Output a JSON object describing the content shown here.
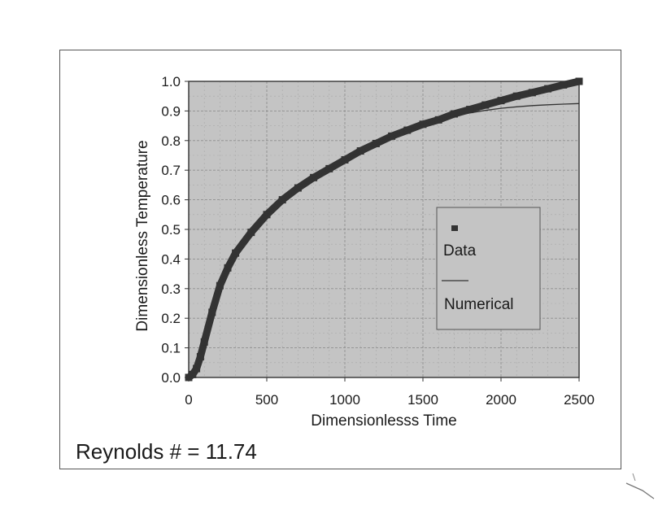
{
  "chart_data": {
    "type": "line",
    "xlabel": "Dimensionlesss Time",
    "ylabel": "Dimensionless Temperature",
    "xlim": [
      0,
      2500
    ],
    "ylim": [
      0,
      1.0
    ],
    "x_ticks": [
      "0",
      "500",
      "1000",
      "1500",
      "2000",
      "2500"
    ],
    "y_ticks": [
      "0.0",
      "0.1",
      "0.2",
      "0.3",
      "0.4",
      "0.5",
      "0.6",
      "0.7",
      "0.8",
      "0.9",
      "1.0"
    ],
    "grid": true,
    "legend": "right-middle",
    "series": [
      {
        "name": "Data",
        "style": "markers",
        "color": "#333333",
        "x": [
          0,
          25,
          50,
          75,
          100,
          150,
          200,
          250,
          300,
          400,
          500,
          600,
          700,
          800,
          900,
          1000,
          1100,
          1200,
          1300,
          1400,
          1500,
          1600,
          1700,
          1800,
          1900,
          2000,
          2100,
          2200,
          2300,
          2400,
          2500
        ],
        "y": [
          0.0,
          0.01,
          0.03,
          0.07,
          0.12,
          0.22,
          0.31,
          0.37,
          0.42,
          0.49,
          0.55,
          0.6,
          0.64,
          0.675,
          0.705,
          0.735,
          0.765,
          0.79,
          0.815,
          0.835,
          0.855,
          0.87,
          0.89,
          0.905,
          0.92,
          0.935,
          0.95,
          0.962,
          0.975,
          0.988,
          1.0
        ]
      },
      {
        "name": "Numerical",
        "style": "line",
        "color": "#333333",
        "x": [
          0,
          25,
          50,
          75,
          100,
          150,
          200,
          250,
          300,
          400,
          500,
          600,
          700,
          800,
          900,
          1000,
          1100,
          1200,
          1300,
          1400,
          1500,
          1600,
          1700,
          1800,
          1900,
          2000,
          2100,
          2200,
          2300,
          2400,
          2500
        ],
        "y": [
          0.0,
          0.01,
          0.03,
          0.07,
          0.12,
          0.22,
          0.31,
          0.37,
          0.42,
          0.49,
          0.55,
          0.6,
          0.64,
          0.675,
          0.705,
          0.735,
          0.765,
          0.79,
          0.815,
          0.835,
          0.855,
          0.87,
          0.883,
          0.893,
          0.902,
          0.909,
          0.914,
          0.918,
          0.921,
          0.923,
          0.925
        ]
      }
    ]
  },
  "annotation": {
    "reynolds": "Reynolds # = 11.74"
  },
  "colors": {
    "plot_background": "#c4c4c4",
    "grid_major": "#8e8e8e",
    "grid_minor": "#a9a9a9",
    "frame": "#555555",
    "ink": "#1a1a1a"
  }
}
